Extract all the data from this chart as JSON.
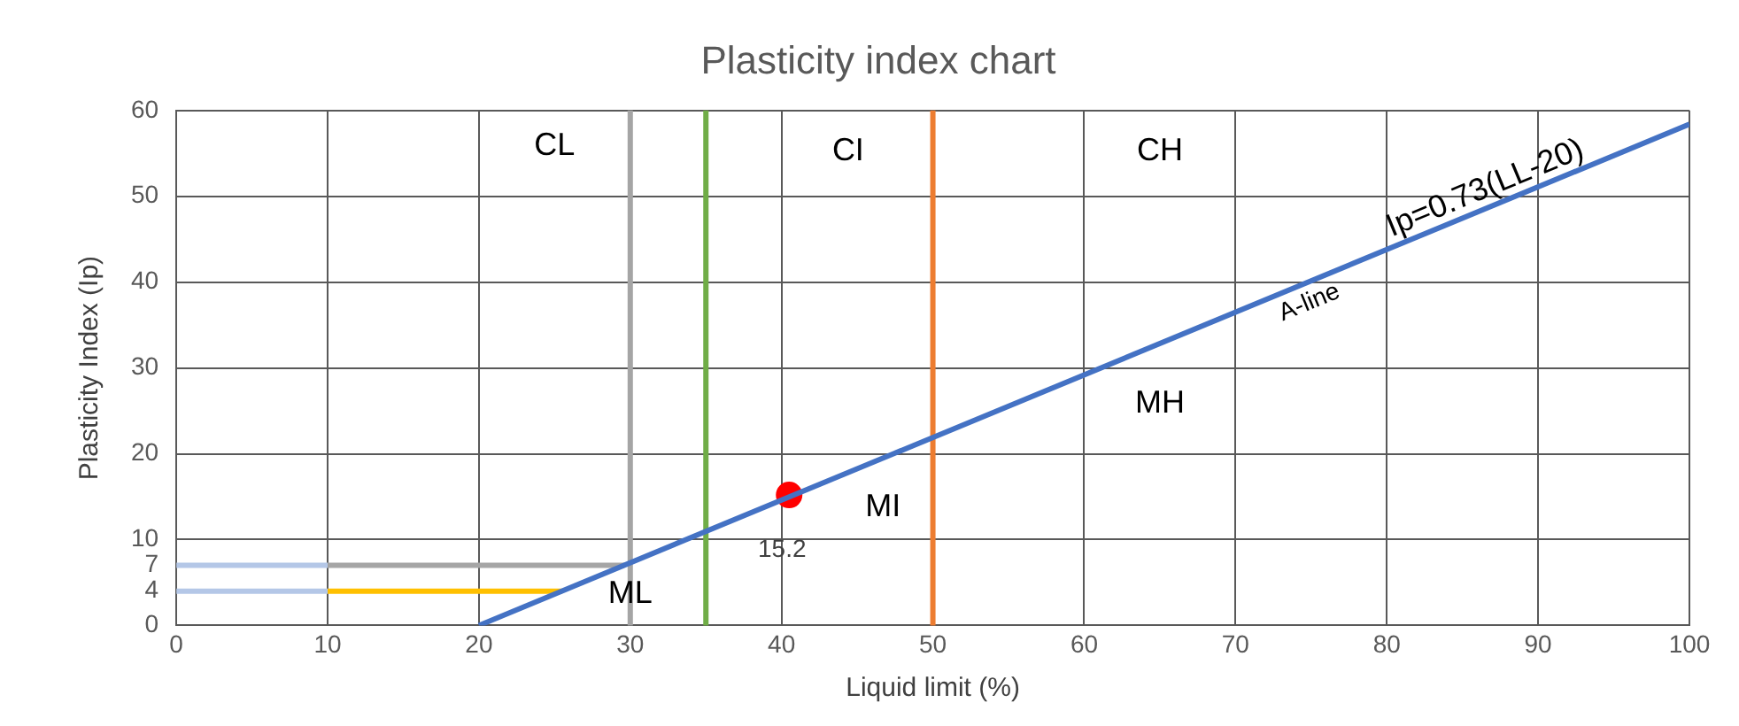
{
  "chart_data": {
    "type": "line",
    "title": "Plasticity index chart",
    "xlabel": "Liquid limit (%)",
    "ylabel": "Plasticity Index (Ip)",
    "xlim": [
      0,
      100
    ],
    "xticks": [
      0,
      10,
      20,
      30,
      40,
      50,
      60,
      70,
      80,
      90,
      100
    ],
    "ylim": [
      0,
      60
    ],
    "yticks": [
      0,
      {
        "value": 4,
        "label": "4"
      },
      {
        "value": 7,
        "label": "7"
      },
      10,
      20,
      30,
      40,
      50,
      60
    ],
    "grid": true,
    "legend": false,
    "marker": "none",
    "line_style": "solid",
    "series": [
      {
        "name": "A-line",
        "color": "#4472c4",
        "x": [
          20,
          100
        ],
        "values": [
          0,
          58.4
        ]
      },
      {
        "color": "#b4c7e7",
        "x": [
          0,
          10
        ],
        "values": [
          7,
          7
        ]
      },
      {
        "color": "#a5a5a5",
        "x": [
          10,
          29.6
        ],
        "values": [
          7,
          7
        ]
      },
      {
        "color": "#b4c7e7",
        "x": [
          0,
          10
        ],
        "values": [
          4,
          4
        ]
      },
      {
        "color": "#ffc000",
        "x": [
          10,
          25.5
        ],
        "values": [
          4,
          4
        ]
      },
      {
        "type": "scatter",
        "marker": "circle",
        "color": "#ff0000",
        "x": [
          40.5
        ],
        "values": [
          15.2
        ],
        "value_labels": [
          "15.2"
        ]
      }
    ],
    "ref_lines": [
      {
        "axis": "x",
        "value": 30,
        "color": "#a5a5a5"
      },
      {
        "axis": "x",
        "value": 35,
        "color": "#70ad47"
      },
      {
        "axis": "x",
        "value": 50,
        "color": "#ed7d31"
      }
    ],
    "annotations": [
      "CL",
      "CI",
      "CH",
      "MH",
      "MI",
      "ML",
      {
        "text": "Ip=0.73(LL-20)",
        "x": 87,
        "y": 48.8
      }
    ]
  }
}
